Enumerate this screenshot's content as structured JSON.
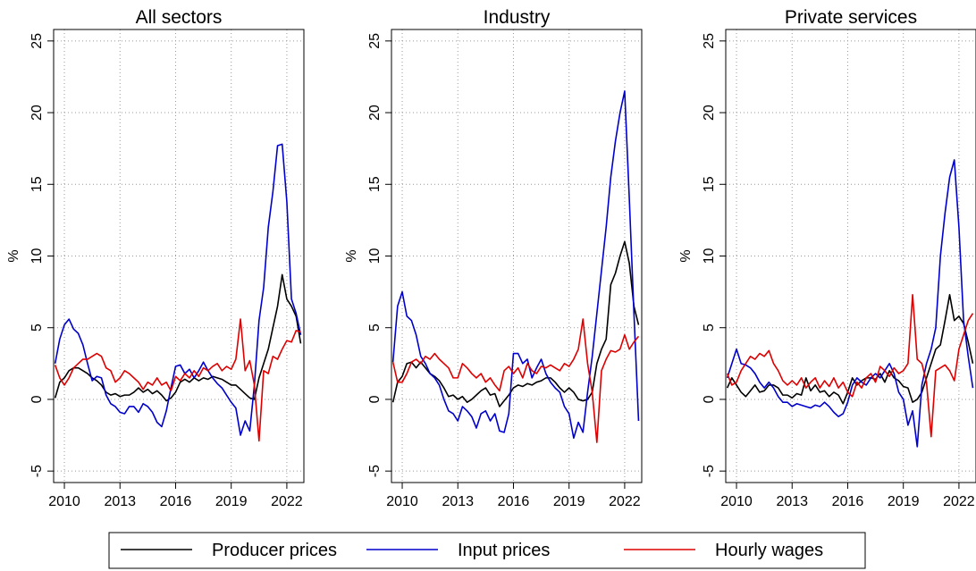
{
  "chart_data": [
    {
      "type": "line",
      "title": "All sectors",
      "y_label": "%",
      "x": [
        2009.5,
        2009.75,
        2010,
        2010.25,
        2010.5,
        2010.75,
        2011,
        2011.25,
        2011.5,
        2011.75,
        2012,
        2012.25,
        2012.5,
        2012.75,
        2013,
        2013.25,
        2013.5,
        2013.75,
        2014,
        2014.25,
        2014.5,
        2014.75,
        2015,
        2015.25,
        2015.5,
        2015.75,
        2016,
        2016.25,
        2016.5,
        2016.75,
        2017,
        2017.25,
        2017.5,
        2017.75,
        2018,
        2018.25,
        2018.5,
        2018.75,
        2019,
        2019.25,
        2019.5,
        2019.75,
        2020,
        2020.25,
        2020.5,
        2020.75,
        2021,
        2021.25,
        2021.5,
        2021.75,
        2022,
        2022.25,
        2022.5,
        2022.75
      ],
      "series": [
        {
          "name": "Producer prices",
          "color": "#000000",
          "values": [
            0.1,
            1.2,
            1.5,
            2.0,
            2.2,
            2.2,
            2.0,
            1.8,
            1.5,
            1.3,
            1.0,
            0.5,
            0.3,
            0.4,
            0.2,
            0.3,
            0.3,
            0.5,
            0.8,
            0.5,
            0.7,
            0.4,
            0.6,
            0.3,
            -0.1,
            0.1,
            0.5,
            1.2,
            1.4,
            1.2,
            1.5,
            1.3,
            1.5,
            1.4,
            1.6,
            1.5,
            1.4,
            1.2,
            1.0,
            1.0,
            0.7,
            0.4,
            0.1,
            0.0,
            1.5,
            2.5,
            3.5,
            5.0,
            6.5,
            8.7,
            7.0,
            6.5,
            5.8,
            3.9
          ]
        },
        {
          "name": "Input prices",
          "color": "#0000cc",
          "values": [
            2.5,
            4.2,
            5.2,
            5.6,
            4.9,
            4.6,
            3.8,
            2.5,
            1.3,
            1.6,
            1.5,
            0.3,
            -0.3,
            -0.5,
            -0.9,
            -1.0,
            -0.5,
            -0.5,
            -0.9,
            -0.3,
            -0.5,
            -0.9,
            -1.6,
            -1.9,
            -0.8,
            0.8,
            2.3,
            2.4,
            1.8,
            2.1,
            1.5,
            2.0,
            2.6,
            2.0,
            1.5,
            1.1,
            0.8,
            0.3,
            -0.2,
            -0.6,
            -2.5,
            -1.5,
            -2.2,
            1.0,
            5.5,
            7.8,
            12.0,
            14.5,
            17.7,
            17.8,
            13.8,
            7.0,
            6.0,
            4.5
          ]
        },
        {
          "name": "Hourly wages",
          "color": "#dd0000",
          "values": [
            2.4,
            1.5,
            1.0,
            1.5,
            2.2,
            2.5,
            2.8,
            2.8,
            3.0,
            3.2,
            3.0,
            2.2,
            2.0,
            1.2,
            1.5,
            2.0,
            1.8,
            1.5,
            1.2,
            0.7,
            1.2,
            1.0,
            1.5,
            1.0,
            1.2,
            0.6,
            1.6,
            1.3,
            1.8,
            1.5,
            2.0,
            1.6,
            2.2,
            2.0,
            2.3,
            2.5,
            2.0,
            2.3,
            2.1,
            2.8,
            5.6,
            2.0,
            2.7,
            1.0,
            -2.9,
            2.0,
            1.8,
            3.0,
            2.8,
            3.5,
            4.1,
            4.0,
            4.8,
            4.7
          ]
        }
      ],
      "xlim": [
        2009.42,
        2022.92
      ],
      "ylim": [
        -5.8,
        25.8
      ],
      "xticks": [
        2010,
        2013,
        2016,
        2019,
        2022
      ],
      "yticks": [
        -5,
        0,
        5,
        10,
        15,
        20,
        25
      ],
      "grid": true
    },
    {
      "type": "line",
      "title": "Industry",
      "y_label": "%",
      "x": [
        2009.5,
        2009.75,
        2010,
        2010.25,
        2010.5,
        2010.75,
        2011,
        2011.25,
        2011.5,
        2011.75,
        2012,
        2012.25,
        2012.5,
        2012.75,
        2013,
        2013.25,
        2013.5,
        2013.75,
        2014,
        2014.25,
        2014.5,
        2014.75,
        2015,
        2015.25,
        2015.5,
        2015.75,
        2016,
        2016.25,
        2016.5,
        2016.75,
        2017,
        2017.25,
        2017.5,
        2017.75,
        2018,
        2018.25,
        2018.5,
        2018.75,
        2019,
        2019.25,
        2019.5,
        2019.75,
        2020,
        2020.25,
        2020.5,
        2020.75,
        2021,
        2021.25,
        2021.5,
        2021.75,
        2022,
        2022.25,
        2022.5,
        2022.75
      ],
      "series": [
        {
          "color": "#000000",
          "values": [
            -0.2,
            1.2,
            1.6,
            2.5,
            2.6,
            2.2,
            2.6,
            2.2,
            1.8,
            1.6,
            1.3,
            0.8,
            0.2,
            0.3,
            0.0,
            0.2,
            -0.2,
            0.0,
            0.3,
            0.6,
            0.8,
            0.3,
            0.4,
            -0.5,
            -0.1,
            0.3,
            0.8,
            1.0,
            0.9,
            1.1,
            1.0,
            1.2,
            1.3,
            1.5,
            1.5,
            1.2,
            0.8,
            0.5,
            0.8,
            0.5,
            0.0,
            -0.1,
            0.0,
            0.5,
            2.5,
            3.5,
            4.2,
            8.0,
            8.8,
            10.0,
            11.0,
            9.5,
            6.5,
            5.2
          ]
        },
        {
          "color": "#0000cc",
          "values": [
            2.6,
            6.5,
            7.5,
            5.8,
            5.5,
            4.5,
            3.0,
            2.5,
            1.8,
            1.5,
            1.0,
            0.0,
            -0.8,
            -1.0,
            -1.5,
            -0.5,
            -0.8,
            -1.2,
            -2.0,
            -1.0,
            -0.8,
            -1.5,
            -1.0,
            -2.2,
            -2.3,
            -1.0,
            3.2,
            3.2,
            2.5,
            2.8,
            1.5,
            2.2,
            2.8,
            1.8,
            1.2,
            0.8,
            0.5,
            -0.5,
            -1.0,
            -2.7,
            -1.6,
            -2.3,
            0.5,
            3.0,
            6.0,
            9.0,
            12.0,
            15.5,
            18.0,
            20.0,
            21.5,
            14.0,
            6.0,
            -1.5
          ]
        },
        {
          "color": "#dd0000",
          "values": [
            2.6,
            1.2,
            1.2,
            1.8,
            2.6,
            2.8,
            2.5,
            3.0,
            2.8,
            3.2,
            2.8,
            2.5,
            2.2,
            1.5,
            1.5,
            2.5,
            2.2,
            1.8,
            1.5,
            1.8,
            1.2,
            1.5,
            1.0,
            0.6,
            2.0,
            2.3,
            1.8,
            2.2,
            1.5,
            2.5,
            2.0,
            1.8,
            2.3,
            2.2,
            2.4,
            2.2,
            2.0,
            2.5,
            2.3,
            2.8,
            3.5,
            5.6,
            2.5,
            0.5,
            -3.0,
            2.0,
            2.8,
            3.4,
            3.3,
            3.5,
            4.5,
            3.5,
            4.0,
            4.4
          ]
        }
      ],
      "xlim": [
        2009.42,
        2022.92
      ],
      "ylim": [
        -5.8,
        25.8
      ],
      "xticks": [
        2010,
        2013,
        2016,
        2019,
        2022
      ],
      "yticks": [
        -5,
        0,
        5,
        10,
        15,
        20,
        25
      ],
      "grid": true
    },
    {
      "type": "line",
      "title": "Private services",
      "y_label": "%",
      "x": [
        2009.5,
        2009.75,
        2010,
        2010.25,
        2010.5,
        2010.75,
        2011,
        2011.25,
        2011.5,
        2011.75,
        2012,
        2012.25,
        2012.5,
        2012.75,
        2013,
        2013.25,
        2013.5,
        2013.75,
        2014,
        2014.25,
        2014.5,
        2014.75,
        2015,
        2015.25,
        2015.5,
        2015.75,
        2016,
        2016.25,
        2016.5,
        2016.75,
        2017,
        2017.25,
        2017.5,
        2017.75,
        2018,
        2018.25,
        2018.5,
        2018.75,
        2019,
        2019.25,
        2019.5,
        2019.75,
        2020,
        2020.25,
        2020.5,
        2020.75,
        2021,
        2021.25,
        2021.5,
        2021.75,
        2022,
        2022.25,
        2022.5,
        2022.75
      ],
      "series": [
        {
          "color": "#000000",
          "values": [
            0.8,
            1.5,
            1.0,
            0.5,
            0.2,
            0.6,
            1.0,
            0.5,
            0.6,
            1.0,
            1.0,
            0.8,
            0.3,
            0.3,
            0.1,
            0.4,
            0.3,
            1.5,
            0.6,
            1.0,
            0.5,
            0.6,
            0.2,
            0.5,
            0.3,
            -0.3,
            0.5,
            1.5,
            1.0,
            1.3,
            1.5,
            1.5,
            1.4,
            1.8,
            1.2,
            2.0,
            1.5,
            1.3,
            0.9,
            0.8,
            -0.2,
            0.0,
            0.5,
            1.5,
            2.5,
            3.5,
            3.8,
            5.5,
            7.3,
            5.5,
            5.8,
            5.3,
            4.0,
            2.5
          ]
        },
        {
          "color": "#0000cc",
          "values": [
            1.5,
            2.5,
            3.5,
            2.5,
            2.4,
            2.2,
            1.8,
            1.2,
            0.8,
            1.2,
            0.8,
            0.2,
            -0.2,
            -0.2,
            -0.5,
            -0.3,
            -0.4,
            -0.5,
            -0.6,
            -0.4,
            -0.5,
            -0.2,
            -0.5,
            -0.9,
            -1.2,
            -1.0,
            -0.2,
            1.0,
            1.5,
            1.2,
            1.0,
            1.5,
            1.8,
            1.5,
            2.0,
            2.5,
            1.8,
            0.5,
            0.0,
            -1.8,
            -0.8,
            -3.3,
            1.0,
            2.5,
            3.5,
            5.0,
            10.0,
            13.0,
            15.5,
            16.7,
            12.0,
            5.5,
            3.0,
            0.8
          ]
        },
        {
          "color": "#dd0000",
          "values": [
            1.8,
            1.0,
            1.2,
            2.0,
            2.5,
            3.0,
            2.8,
            3.2,
            3.0,
            3.4,
            2.5,
            2.0,
            1.3,
            1.0,
            1.3,
            1.0,
            1.5,
            0.8,
            1.2,
            1.5,
            0.8,
            1.3,
            0.9,
            1.5,
            0.8,
            1.2,
            0.5,
            0.2,
            1.2,
            0.8,
            1.5,
            1.8,
            1.2,
            2.3,
            2.0,
            1.6,
            2.2,
            1.8,
            2.0,
            2.5,
            7.3,
            2.8,
            2.5,
            1.2,
            -2.6,
            2.0,
            2.2,
            2.4,
            2.0,
            1.3,
            3.5,
            4.5,
            5.5,
            6.0
          ]
        }
      ],
      "xlim": [
        2009.42,
        2022.92
      ],
      "ylim": [
        -5.8,
        25.8
      ],
      "xticks": [
        2010,
        2013,
        2016,
        2019,
        2022
      ],
      "yticks": [
        -5,
        0,
        5,
        10,
        15,
        20,
        25
      ],
      "grid": true
    }
  ]
}
